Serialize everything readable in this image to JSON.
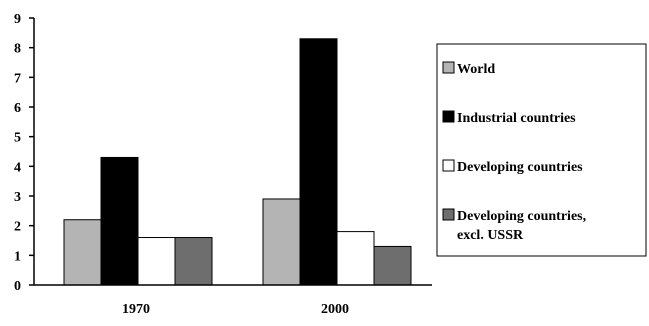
{
  "chart_data": {
    "type": "bar",
    "categories": [
      "1970",
      "2000"
    ],
    "series": [
      {
        "name": "World",
        "values": [
          2.2,
          2.9
        ],
        "color": "#b4b4b4"
      },
      {
        "name": "Industrial countries",
        "values": [
          4.3,
          8.3
        ],
        "color": "#000000"
      },
      {
        "name": "Developing countries",
        "values": [
          1.6,
          1.8
        ],
        "color": "#ffffff"
      },
      {
        "name": "Developing countries, excl. USSR",
        "values": [
          1.6,
          1.3
        ],
        "color": "#6e6e6e"
      }
    ],
    "legend_lines": [
      [
        "World"
      ],
      [
        "Industrial countries"
      ],
      [
        "Developing countries"
      ],
      [
        "Developing countries,",
        "excl. USSR"
      ]
    ],
    "ylim": [
      0,
      9
    ],
    "yticks": [
      0,
      1,
      2,
      3,
      4,
      5,
      6,
      7,
      8,
      9
    ],
    "title": "",
    "xlabel": "",
    "ylabel": "",
    "grid": false,
    "legend_position": "right"
  }
}
